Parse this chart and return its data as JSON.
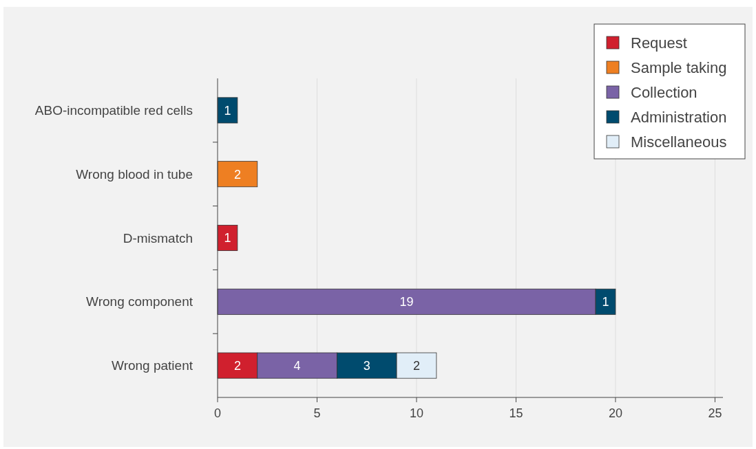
{
  "chart_data": {
    "type": "bar",
    "orientation": "horizontal",
    "stacked": true,
    "categories": [
      "ABO-incompatible red cells",
      "Wrong blood in tube",
      "D-mismatch",
      "Wrong component",
      "Wrong patient"
    ],
    "series": [
      {
        "name": "Request",
        "color": "#d0202e",
        "values": [
          null,
          null,
          1,
          null,
          2
        ]
      },
      {
        "name": "Sample taking",
        "color": "#ee7f22",
        "values": [
          null,
          2,
          null,
          null,
          null
        ]
      },
      {
        "name": "Collection",
        "color": "#7a63a6",
        "values": [
          null,
          null,
          null,
          19,
          4
        ]
      },
      {
        "name": "Administration",
        "color": "#004b6e",
        "values": [
          1,
          null,
          null,
          1,
          3
        ]
      },
      {
        "name": "Miscellaneous",
        "color": "#e1eef8",
        "values": [
          null,
          null,
          null,
          null,
          2
        ]
      }
    ],
    "xlim": [
      0,
      25.4
    ],
    "xticks": [
      0,
      5,
      10,
      15,
      20,
      25
    ],
    "grid": "x",
    "legend": "top right",
    "data_labels": true
  }
}
